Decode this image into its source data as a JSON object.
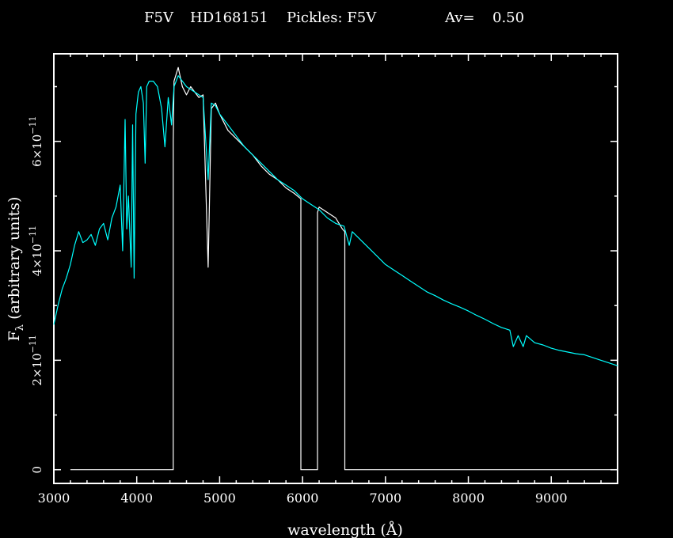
{
  "title": {
    "star_type": "F5V",
    "star_id": "HD168151",
    "pickles_label": "Pickles: F5V",
    "av_label": "Av=",
    "av_value": "0.50"
  },
  "colors": {
    "background": "#000000",
    "frame": "#ffffff",
    "observed": "#ffffff",
    "template": "#00ffff"
  },
  "chart_data": {
    "type": "line",
    "title": "F5V   HD168151   Pickles: F5V        Av=   0.50",
    "xlabel": "wavelength (Å)",
    "ylabel": "Fλ (arbitrary units)",
    "ylabel_main": "F",
    "ylabel_sub": "λ",
    "ylabel_rest": " (arbitrary units)",
    "xlim": [
      3000,
      9800
    ],
    "ylim": [
      -2.5e-12,
      7.6e-11
    ],
    "xticks": [
      3000,
      4000,
      5000,
      6000,
      7000,
      8000,
      9000
    ],
    "xtick_labels": [
      "3000",
      "4000",
      "5000",
      "6000",
      "7000",
      "8000",
      "9000"
    ],
    "yticks": [
      0,
      2e-11,
      4e-11,
      6e-11
    ],
    "ytick_labels": [
      {
        "mantissa": "0",
        "exp": ""
      },
      {
        "mantissa": "2×10",
        "exp": "−11"
      },
      {
        "mantissa": "4×10",
        "exp": "−11"
      },
      {
        "mantissa": "6×10",
        "exp": "−11"
      }
    ],
    "grid": false,
    "series": [
      {
        "key": "template",
        "color": "#00ffff",
        "x": [
          3000,
          3050,
          3100,
          3150,
          3200,
          3250,
          3300,
          3350,
          3400,
          3450,
          3500,
          3550,
          3600,
          3650,
          3700,
          3750,
          3800,
          3830,
          3860,
          3880,
          3900,
          3933,
          3950,
          3968,
          3990,
          4020,
          4050,
          4080,
          4101,
          4120,
          4150,
          4200,
          4250,
          4300,
          4340,
          4380,
          4420,
          4450,
          4500,
          4550,
          4600,
          4650,
          4700,
          4750,
          4800,
          4861,
          4900,
          4950,
          5000,
          5100,
          5200,
          5300,
          5400,
          5500,
          5600,
          5700,
          5800,
          5900,
          6000,
          6100,
          6200,
          6300,
          6400,
          6500,
          6563,
          6600,
          6700,
          6800,
          6900,
          7000,
          7100,
          7200,
          7300,
          7400,
          7500,
          7600,
          7700,
          7800,
          7900,
          8000,
          8100,
          8200,
          8300,
          8400,
          8500,
          8542,
          8600,
          8662,
          8700,
          8800,
          8900,
          9000,
          9100,
          9200,
          9300,
          9400,
          9500,
          9600,
          9700,
          9800
        ],
        "y": [
          2.65e-11,
          3e-11,
          3.3e-11,
          3.5e-11,
          3.75e-11,
          4.1e-11,
          4.35e-11,
          4.15e-11,
          4.2e-11,
          4.3e-11,
          4.1e-11,
          4.4e-11,
          4.5e-11,
          4.2e-11,
          4.6e-11,
          4.8e-11,
          5.2e-11,
          4e-11,
          6.4e-11,
          4.4e-11,
          5e-11,
          3.7e-11,
          6.3e-11,
          3.5e-11,
          6.5e-11,
          6.9e-11,
          7e-11,
          6.7e-11,
          5.6e-11,
          7e-11,
          7.1e-11,
          7.1e-11,
          7e-11,
          6.6e-11,
          5.9e-11,
          6.8e-11,
          6.3e-11,
          7e-11,
          7.2e-11,
          7.1e-11,
          7e-11,
          6.95e-11,
          6.9e-11,
          6.85e-11,
          6.8e-11,
          5.3e-11,
          6.7e-11,
          6.65e-11,
          6.5e-11,
          6.3e-11,
          6.1e-11,
          5.9e-11,
          5.75e-11,
          5.6e-11,
          5.45e-11,
          5.3e-11,
          5.2e-11,
          5.1e-11,
          4.95e-11,
          4.85e-11,
          4.75e-11,
          4.6e-11,
          4.5e-11,
          4.45e-11,
          4.1e-11,
          4.35e-11,
          4.2e-11,
          4.05e-11,
          3.9e-11,
          3.75e-11,
          3.65e-11,
          3.55e-11,
          3.45e-11,
          3.35e-11,
          3.25e-11,
          3.18e-11,
          3.1e-11,
          3.03e-11,
          2.97e-11,
          2.9e-11,
          2.82e-11,
          2.75e-11,
          2.67e-11,
          2.6e-11,
          2.55e-11,
          2.25e-11,
          2.45e-11,
          2.25e-11,
          2.45e-11,
          2.32e-11,
          2.28e-11,
          2.22e-11,
          2.18e-11,
          2.15e-11,
          2.12e-11,
          2.1e-11,
          2.05e-11,
          2e-11,
          1.95e-11,
          1.9e-11
        ]
      },
      {
        "key": "observed",
        "color": "#ffffff",
        "x": [
          3200,
          4440,
          4440,
          4450,
          4500,
          4550,
          4600,
          4650,
          4700,
          4750,
          4800,
          4861,
          4900,
          4950,
          5000,
          5100,
          5200,
          5300,
          5400,
          5500,
          5600,
          5700,
          5800,
          5900,
          5980,
          5980,
          6180,
          6180,
          6200,
          6300,
          6400,
          6480,
          6510,
          6510,
          9800
        ],
        "y": [
          0,
          0,
          6e-11,
          7.1e-11,
          7.35e-11,
          7e-11,
          6.85e-11,
          7e-11,
          6.9e-11,
          6.8e-11,
          6.85e-11,
          3.7e-11,
          6.6e-11,
          6.7e-11,
          6.5e-11,
          6.2e-11,
          6.05e-11,
          5.9e-11,
          5.75e-11,
          5.55e-11,
          5.4e-11,
          5.3e-11,
          5.15e-11,
          5.05e-11,
          4.95e-11,
          0,
          0,
          4.7e-11,
          4.8e-11,
          4.7e-11,
          4.6e-11,
          4.4e-11,
          4.35e-11,
          0,
          0
        ]
      }
    ]
  }
}
